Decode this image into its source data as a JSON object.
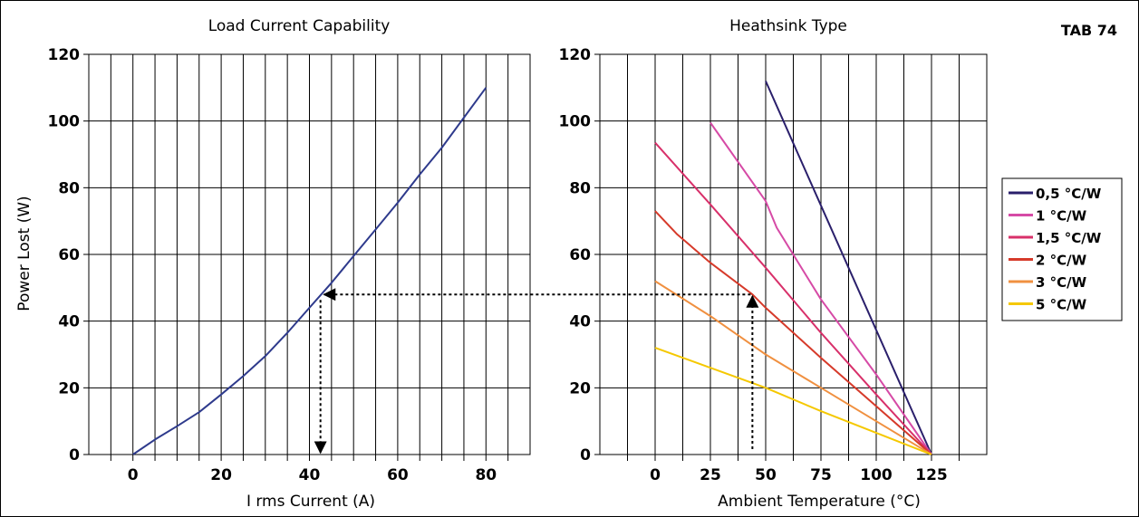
{
  "tag": "TAB 74",
  "y_axis_label": "Power Lost (W)",
  "chart_data": [
    {
      "type": "line",
      "title": "Load Current Capability",
      "xlabel": "I rms Current (A)",
      "ylabel": "Power Lost (W)",
      "xlim": [
        -10,
        90
      ],
      "ylim": [
        0,
        120
      ],
      "x_ticks": [
        0,
        20,
        40,
        60,
        80
      ],
      "y_ticks": [
        0,
        20,
        40,
        60,
        80,
        100,
        120
      ],
      "grid": true,
      "series": [
        {
          "color": "#2e3a8c",
          "points": [
            [
              0,
              0
            ],
            [
              5,
              4.5
            ],
            [
              10,
              8.5
            ],
            [
              15,
              12.7
            ],
            [
              20,
              18
            ],
            [
              25,
              23.5
            ],
            [
              30,
              29.5
            ],
            [
              35,
              36.5
            ],
            [
              40,
              44
            ],
            [
              45,
              51.5
            ],
            [
              50,
              59.5
            ],
            [
              55,
              67.5
            ],
            [
              60,
              75.5
            ],
            [
              65,
              84
            ],
            [
              70,
              92
            ],
            [
              75,
              101
            ],
            [
              80,
              110
            ]
          ]
        }
      ],
      "annotation": {
        "x": 42.5,
        "y": 48,
        "style": "dotted-arrow"
      }
    },
    {
      "type": "line",
      "title": "Heathsink Type",
      "xlabel": "Ambient Temperature (°C)",
      "ylabel": "Power Lost (W)",
      "xlim": [
        -25,
        150
      ],
      "ylim": [
        0,
        120
      ],
      "x_ticks": [
        0,
        25,
        50,
        75,
        100,
        125
      ],
      "y_ticks": [
        0,
        20,
        40,
        60,
        80,
        100,
        120
      ],
      "grid": true,
      "legend_position": "right",
      "series": [
        {
          "name": "0,5 °C/W",
          "color": "#2a1f6b",
          "points": [
            [
              50,
              112
            ],
            [
              125,
              0
            ]
          ]
        },
        {
          "name": "1 °C/W",
          "color": "#d64aa6",
          "points": [
            [
              25,
              99.5
            ],
            [
              50,
              76
            ],
            [
              55,
              68
            ],
            [
              75,
              46.5
            ],
            [
              100,
              24
            ],
            [
              125,
              0
            ]
          ]
        },
        {
          "name": "1,5 °C/W",
          "color": "#d8306a",
          "points": [
            [
              0,
              93.5
            ],
            [
              25,
              75
            ],
            [
              50,
              56
            ],
            [
              75,
              36.5
            ],
            [
              100,
              18
            ],
            [
              125,
              0
            ]
          ]
        },
        {
          "name": "2 °C/W",
          "color": "#d63a2a",
          "points": [
            [
              0,
              73
            ],
            [
              10,
              66
            ],
            [
              25,
              57.5
            ],
            [
              37,
              51.5
            ],
            [
              44,
              48
            ],
            [
              50,
              44
            ],
            [
              75,
              29
            ],
            [
              100,
              14.5
            ],
            [
              125,
              0
            ]
          ]
        },
        {
          "name": "3 °C/W",
          "color": "#f09040",
          "points": [
            [
              0,
              52
            ],
            [
              25,
              41.5
            ],
            [
              50,
              30
            ],
            [
              75,
              20
            ],
            [
              100,
              10
            ],
            [
              125,
              0
            ]
          ]
        },
        {
          "name": "5 °C/W",
          "color": "#f5c800",
          "points": [
            [
              0,
              32
            ],
            [
              25,
              26
            ],
            [
              50,
              20
            ],
            [
              75,
              13
            ],
            [
              100,
              6.5
            ],
            [
              125,
              0
            ]
          ]
        }
      ],
      "annotation": {
        "x": 44,
        "y": 48,
        "style": "dotted-arrow"
      }
    }
  ]
}
